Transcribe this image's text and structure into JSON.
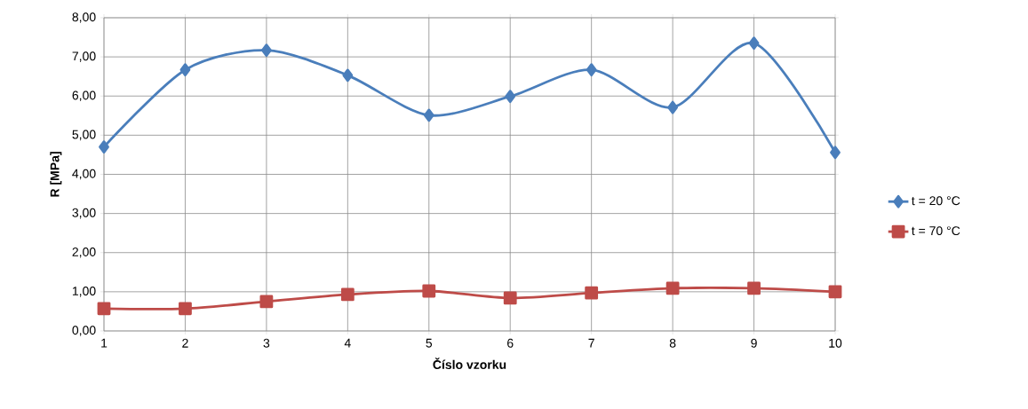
{
  "chart_data": {
    "type": "line",
    "xlabel": "Číslo vzorku",
    "ylabel": "R [MPa]",
    "categories": [
      "1",
      "2",
      "3",
      "4",
      "5",
      "6",
      "7",
      "8",
      "9",
      "10"
    ],
    "ylim": [
      0,
      8
    ],
    "yticks": [
      {
        "value": 0,
        "label": "0,00"
      },
      {
        "value": 1,
        "label": "1,00"
      },
      {
        "value": 2,
        "label": "2,00"
      },
      {
        "value": 3,
        "label": "3,00"
      },
      {
        "value": 4,
        "label": "4,00"
      },
      {
        "value": 5,
        "label": "5,00"
      },
      {
        "value": 6,
        "label": "6,00"
      },
      {
        "value": 7,
        "label": "7,00"
      },
      {
        "value": 8,
        "label": "8,00"
      }
    ],
    "grid": true,
    "legend": "right",
    "line_style": "solid",
    "series": [
      {
        "name": "t = 20 °C",
        "color": "#4a7ebb",
        "marker": "diamond",
        "values": [
          4.7,
          6.67,
          7.17,
          6.53,
          5.51,
          5.99,
          6.67,
          5.71,
          7.35,
          4.56
        ]
      },
      {
        "name": "t = 70 °C",
        "color": "#be4b48",
        "marker": "square",
        "values": [
          0.57,
          0.57,
          0.75,
          0.93,
          1.02,
          0.84,
          0.97,
          1.09,
          1.09,
          1.0
        ]
      }
    ]
  }
}
